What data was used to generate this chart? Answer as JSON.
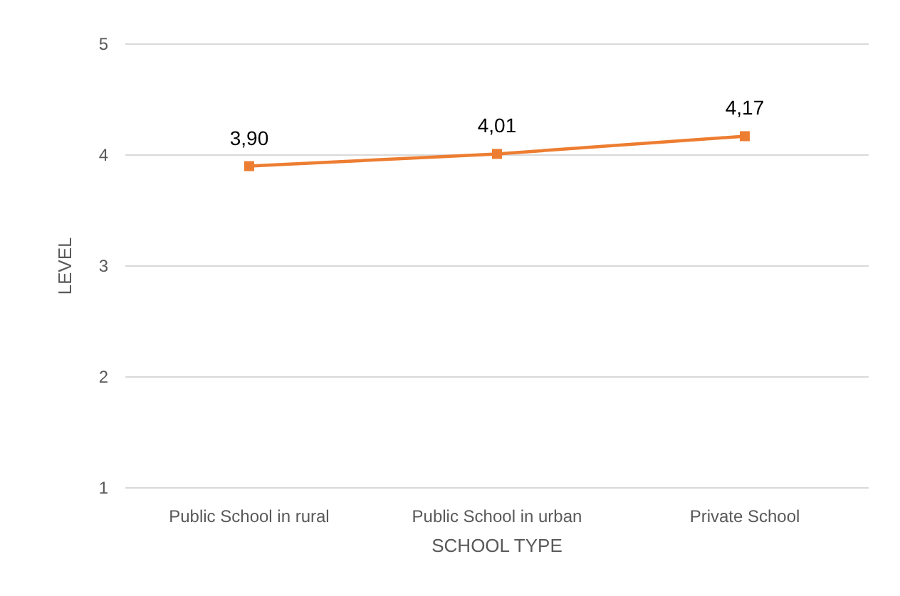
{
  "chart_data": {
    "type": "line",
    "xlabel": "SCHOOL TYPE",
    "ylabel": "LEVEL",
    "categories": [
      "Public School in rural",
      "Public School in urban",
      "Private School"
    ],
    "series": [
      {
        "color": "#ed7d31",
        "values": [
          3.9,
          4.01,
          4.17
        ],
        "value_labels": [
          "3,90",
          "4,01",
          "4,17"
        ]
      }
    ],
    "ylim": [
      1,
      5
    ],
    "yticks": [
      1,
      2,
      3,
      4,
      5
    ],
    "grid": "y",
    "marker": "square",
    "line_style": "solid"
  }
}
